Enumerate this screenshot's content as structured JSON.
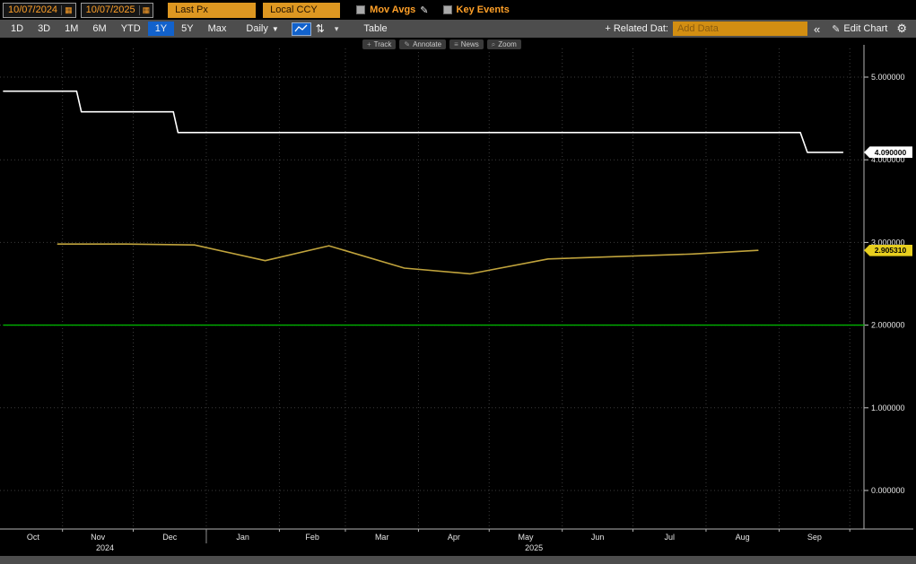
{
  "toolbar": {
    "date_start": "10/07/2024",
    "date_end": "10/07/2025",
    "price_field": "Last Px",
    "currency": "Local CCY",
    "mov_avgs_label": "Mov Avgs",
    "key_events_label": "Key Events"
  },
  "toolbar2": {
    "periods": [
      "1D",
      "3D",
      "1M",
      "6M",
      "YTD",
      "1Y",
      "5Y",
      "Max"
    ],
    "active_period": "1Y",
    "frequency": "Daily",
    "table_label": "Table",
    "related_data_label": "+ Related Dat:",
    "add_data_placeholder": "Add Data",
    "collapse_label": "«",
    "edit_chart_label": "Edit Chart"
  },
  "chart_toolbar": {
    "items": [
      {
        "icon_name": "plus-icon",
        "glyph": "+",
        "label": "Track"
      },
      {
        "icon_name": "pencil-icon",
        "glyph": "✎",
        "label": "Annotate"
      },
      {
        "icon_name": "news-icon",
        "glyph": "≡",
        "label": "News"
      },
      {
        "icon_name": "magnifier-icon",
        "glyph": "⌕",
        "label": "Zoom"
      }
    ]
  },
  "icons": {
    "calendar": "▦",
    "pencil": "✎",
    "gear": "⚙",
    "sort": "⇅",
    "caret_down": "▾",
    "caret_filled": "▼"
  },
  "colors": {
    "amber_text": "#ffa028",
    "amber_fill": "#dd9721",
    "active_blue": "#1262cc",
    "toolbar_gray": "#4d4d4d",
    "white_line": "#ffffff",
    "gold_line": "#c0a33c",
    "green_line": "#00b400",
    "tag_yellow": "#e8cf1e",
    "tag_white": "#ffffff"
  },
  "chart_data": {
    "type": "line",
    "title": "",
    "x_axis": {
      "start_label": "10/07/2024",
      "end_label": "10/07/2025",
      "month_boundaries_days": [
        25,
        55,
        86,
        117,
        145,
        176,
        206,
        237,
        267,
        298,
        329,
        359
      ],
      "month_labels": [
        "Oct",
        "Nov",
        "Dec",
        "Jan",
        "Feb",
        "Mar",
        "Apr",
        "May",
        "Jun",
        "Jul",
        "Aug",
        "Sep"
      ],
      "year_divider_day": 86,
      "year_labels": [
        {
          "label": "2024",
          "center_day": 43
        },
        {
          "label": "2025",
          "center_day": 225
        }
      ],
      "total_days": 365
    },
    "y_axis": {
      "ticks": [
        0,
        1,
        2,
        3,
        4,
        5
      ],
      "tick_labels": [
        "0.000000",
        "1.000000",
        "2.000000",
        "3.000000",
        "4.000000",
        "5.000000"
      ],
      "grid": true
    },
    "series": [
      {
        "name": "white-step-line",
        "color": "#ffffff",
        "width": 1.6,
        "points": [
          [
            0,
            4.83
          ],
          [
            31,
            4.83
          ],
          [
            33,
            4.58
          ],
          [
            72,
            4.58
          ],
          [
            74,
            4.33
          ],
          [
            338,
            4.33
          ],
          [
            341,
            4.09
          ],
          [
            356,
            4.09
          ]
        ]
      },
      {
        "name": "gold-line",
        "color": "#c0a33c",
        "width": 1.6,
        "points": [
          [
            23,
            2.98
          ],
          [
            52,
            2.98
          ],
          [
            81,
            2.97
          ],
          [
            111,
            2.78
          ],
          [
            138,
            2.96
          ],
          [
            170,
            2.69
          ],
          [
            198,
            2.62
          ],
          [
            231,
            2.8
          ],
          [
            261,
            2.83
          ],
          [
            292,
            2.86
          ],
          [
            320,
            2.905
          ]
        ]
      },
      {
        "name": "green-threshold-line",
        "color": "#00b400",
        "width": 1.4,
        "points": [
          [
            0,
            2.0
          ],
          [
            365,
            2.0
          ]
        ]
      }
    ],
    "last_values": [
      {
        "text": "4.090000",
        "value": 4.09,
        "bg": "#ffffff",
        "fg": "#000000"
      },
      {
        "text": "2.905310",
        "value": 2.905,
        "bg": "#e8cf1e",
        "fg": "#000000"
      }
    ]
  }
}
